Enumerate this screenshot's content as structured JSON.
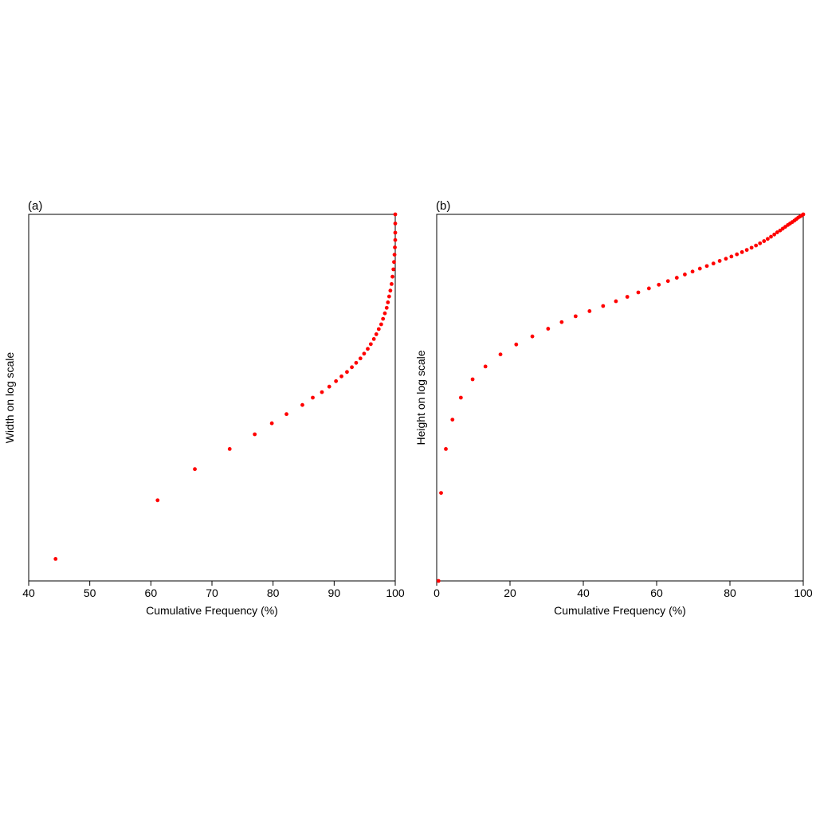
{
  "chart_data": [
    {
      "type": "scatter",
      "panel_label": "(a)",
      "xlabel": "Cumulative Frequency (%)",
      "ylabel": "Width on log scale",
      "xlim": [
        40,
        100
      ],
      "xticks": [
        40,
        50,
        60,
        70,
        80,
        90,
        100
      ],
      "ylim": [
        0,
        1
      ],
      "yticks": [],
      "y_scale": "log (no tick labels shown)",
      "grid": false,
      "legend": "none",
      "point_color": "#ff0000",
      "series": [
        {
          "x": [
            44.4,
            61.1,
            67.2,
            72.9,
            77.0,
            79.8,
            82.2,
            84.8,
            86.5,
            88.0,
            89.2,
            90.3,
            91.2,
            92.1,
            92.9,
            93.6,
            94.3,
            94.9,
            95.5,
            96.0,
            96.5,
            96.9,
            97.3,
            97.7,
            98.0,
            98.3,
            98.6,
            98.8,
            99.0,
            99.2,
            99.4,
            99.55,
            99.7,
            99.8,
            99.88,
            99.94,
            100,
            100,
            100,
            100
          ],
          "y": [
            0.06,
            0.22,
            0.305,
            0.36,
            0.4,
            0.43,
            0.455,
            0.48,
            0.5,
            0.515,
            0.53,
            0.545,
            0.558,
            0.57,
            0.583,
            0.595,
            0.607,
            0.62,
            0.633,
            0.646,
            0.66,
            0.673,
            0.687,
            0.7,
            0.715,
            0.73,
            0.745,
            0.76,
            0.776,
            0.792,
            0.81,
            0.83,
            0.85,
            0.87,
            0.89,
            0.91,
            0.93,
            0.95,
            0.975,
            1.0
          ]
        }
      ]
    },
    {
      "type": "scatter",
      "panel_label": "(b)",
      "xlabel": "Cumulative Frequency (%)",
      "ylabel": "Height on log scale",
      "xlim": [
        0,
        100
      ],
      "xticks": [
        0,
        20,
        40,
        60,
        80,
        100
      ],
      "ylim": [
        0,
        1
      ],
      "yticks": [],
      "y_scale": "log (no tick labels shown)",
      "grid": false,
      "legend": "none",
      "point_color": "#ff0000",
      "series": [
        {
          "x": [
            0.5,
            1.2,
            2.5,
            4.3,
            6.6,
            9.8,
            13.3,
            17.4,
            21.7,
            26.1,
            30.4,
            34.1,
            37.9,
            41.7,
            45.4,
            48.9,
            52.0,
            55.0,
            57.9,
            60.6,
            63.1,
            65.5,
            67.7,
            69.8,
            71.8,
            73.7,
            75.5,
            77.2,
            78.9,
            80.4,
            81.9,
            83.3,
            84.6,
            85.9,
            87.1,
            88.2,
            89.3,
            90.3,
            91.2,
            92.1,
            92.9,
            93.7,
            94.4,
            95.1,
            95.8,
            96.4,
            97.0,
            97.6,
            98.1,
            98.6,
            99.1,
            99.6,
            100
          ],
          "y": [
            0.0,
            0.24,
            0.36,
            0.44,
            0.5,
            0.55,
            0.585,
            0.618,
            0.645,
            0.667,
            0.688,
            0.706,
            0.722,
            0.736,
            0.75,
            0.763,
            0.775,
            0.787,
            0.798,
            0.808,
            0.818,
            0.827,
            0.836,
            0.844,
            0.852,
            0.859,
            0.866,
            0.873,
            0.879,
            0.885,
            0.891,
            0.897,
            0.903,
            0.909,
            0.915,
            0.921,
            0.927,
            0.933,
            0.939,
            0.945,
            0.951,
            0.956,
            0.961,
            0.966,
            0.971,
            0.975,
            0.979,
            0.983,
            0.987,
            0.991,
            0.994,
            0.997,
            1.0
          ]
        }
      ]
    }
  ]
}
